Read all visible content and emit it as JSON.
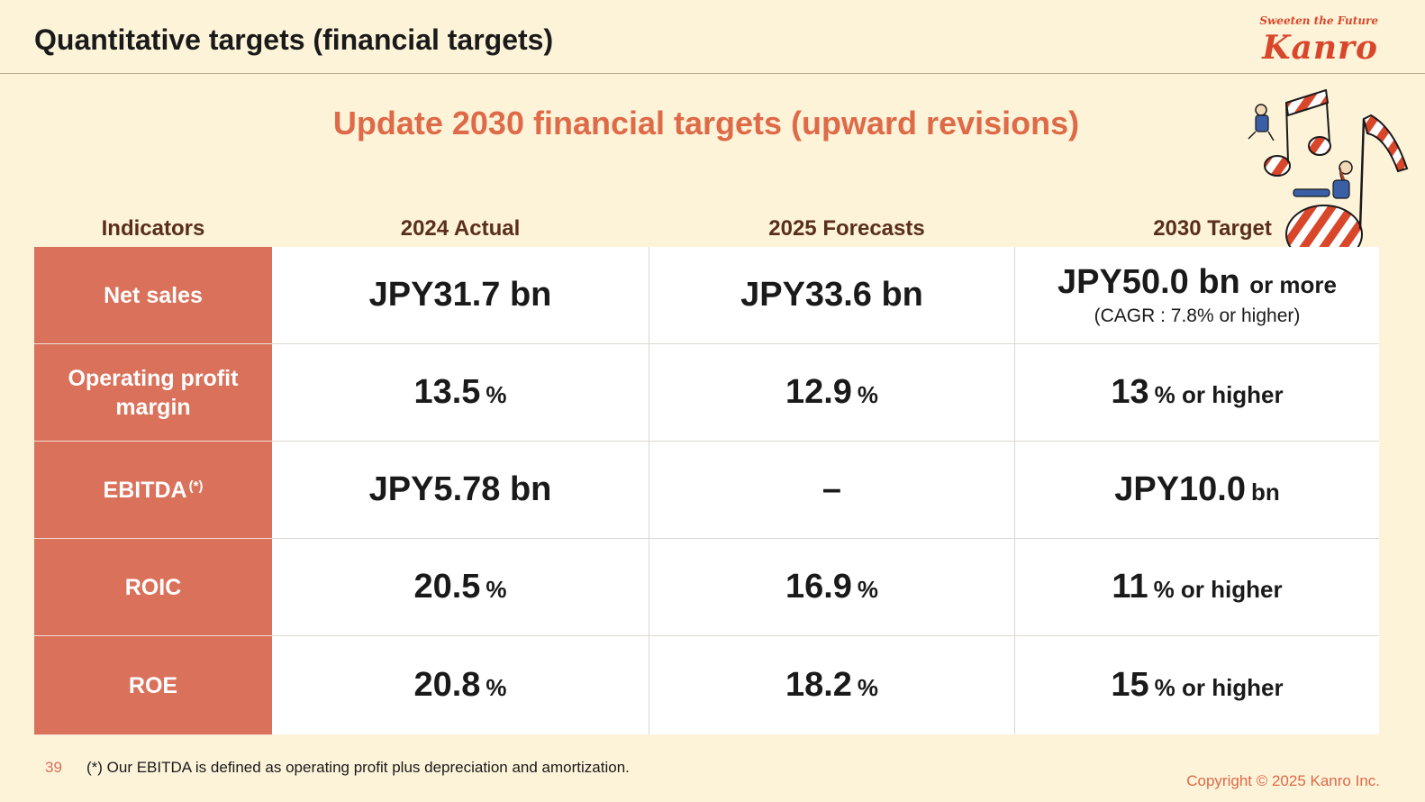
{
  "header": {
    "title": "Quantitative targets (financial targets)"
  },
  "logo": {
    "tagline": "Sweeten the Future",
    "word": "Kanro"
  },
  "subtitle": "Update 2030 financial targets (upward revisions)",
  "table": {
    "headers": [
      "Indicators",
      "2024 Actual",
      "2025 Forecasts",
      "2030 Target"
    ],
    "rows": [
      {
        "indicator": "Net sales",
        "actual_2024": {
          "value": "JPY31.7 bn"
        },
        "forecast_2025": {
          "value": "JPY33.6 bn"
        },
        "target_2030": {
          "value": "JPY50.0 bn",
          "suffix": "or more",
          "note": "(CAGR : 7.8% or higher)"
        }
      },
      {
        "indicator": "Operating profit margin",
        "actual_2024": {
          "value": "13.5",
          "unit": "%"
        },
        "forecast_2025": {
          "value": "12.9",
          "unit": "%"
        },
        "target_2030": {
          "value": "13",
          "unit": "% or higher"
        }
      },
      {
        "indicator": "EBITDA",
        "indicator_mark": "(*)",
        "actual_2024": {
          "value": "JPY5.78 bn"
        },
        "forecast_2025": {
          "value": "–"
        },
        "target_2030": {
          "value": "JPY10.0",
          "unit": "bn"
        }
      },
      {
        "indicator": "ROIC",
        "actual_2024": {
          "value": "20.5",
          "unit": "%"
        },
        "forecast_2025": {
          "value": "16.9",
          "unit": "%"
        },
        "target_2030": {
          "value": "11",
          "unit": "% or higher"
        }
      },
      {
        "indicator": "ROE",
        "actual_2024": {
          "value": "20.8",
          "unit": "%"
        },
        "forecast_2025": {
          "value": "18.2",
          "unit": "%"
        },
        "target_2030": {
          "value": "15",
          "unit": "% or higher"
        }
      }
    ]
  },
  "footer": {
    "page_number": "39",
    "footnote": "(*) Our EBITDA is defined as operating profit plus depreciation and amortization.",
    "copyright": "Copyright © 2025  Kanro Inc."
  },
  "colors": {
    "accent": "#d9715b",
    "title_orange": "#de6a47",
    "background": "#fcf3d9",
    "header_text": "#5a2e1c"
  }
}
